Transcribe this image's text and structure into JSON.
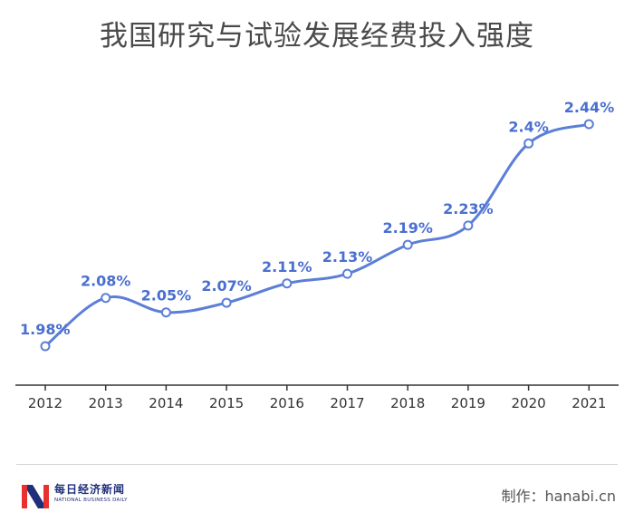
{
  "title": "我国研究与试验发展经费投入强度",
  "footer": {
    "logo_text": "每日经济新闻",
    "logo_sub": "NATIONAL BUSINESS DAILY",
    "credit": "制作：hanabi.cn"
  },
  "colors": {
    "line": "#5b7fd6",
    "label": "#4a6fd0",
    "axis": "#333333",
    "logo_red": "#e8302f",
    "logo_blue": "#1f2f7a"
  },
  "chart_data": {
    "type": "line",
    "title": "我国研究与试验发展经费投入强度",
    "xlabel": "",
    "ylabel": "",
    "categories": [
      "2012",
      "2013",
      "2014",
      "2015",
      "2016",
      "2017",
      "2018",
      "2019",
      "2020",
      "2021"
    ],
    "values": [
      1.98,
      2.08,
      2.05,
      2.07,
      2.11,
      2.13,
      2.19,
      2.23,
      2.4,
      2.44
    ],
    "data_labels": [
      "1.98%",
      "2.08%",
      "2.05%",
      "2.07%",
      "2.11%",
      "2.13%",
      "2.19%",
      "2.23%",
      "2.4%",
      "2.44%"
    ],
    "ylim": [
      1.98,
      2.44
    ],
    "grid": false,
    "legend": "none"
  }
}
